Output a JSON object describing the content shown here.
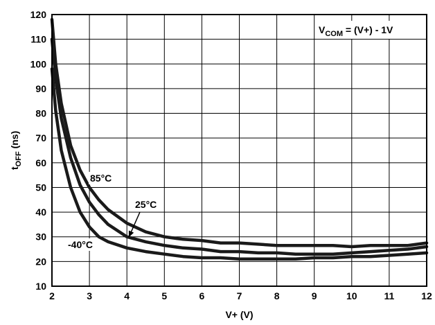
{
  "chart_data": {
    "type": "line",
    "xlabel": "V+ (V)",
    "ylabel": {
      "main": "t",
      "sub": "OFF",
      "rest": " (ns)"
    },
    "xlim": [
      2,
      12
    ],
    "ylim": [
      10,
      120
    ],
    "xticks": [
      2,
      3,
      4,
      5,
      6,
      7,
      8,
      9,
      10,
      11,
      12
    ],
    "yticks": [
      10,
      20,
      30,
      40,
      50,
      60,
      70,
      80,
      90,
      100,
      110,
      120
    ],
    "grid": true,
    "line_color": "#1a1a1a",
    "condition_label": {
      "main": "V",
      "sub": "COM",
      "rest": " = (V+) - 1V"
    },
    "series": [
      {
        "name": "85°C",
        "x": [
          2.0,
          2.1,
          2.25,
          2.5,
          2.75,
          3.0,
          3.25,
          3.5,
          4.0,
          4.5,
          5.0,
          5.5,
          6.0,
          6.5,
          7.0,
          7.5,
          8.0,
          8.5,
          9.0,
          9.5,
          10.0,
          10.5,
          11.0,
          11.5,
          12.0
        ],
        "y": [
          118,
          100,
          84,
          67,
          57,
          50,
          45,
          41,
          35.5,
          32,
          30,
          29,
          28.5,
          27.5,
          27.5,
          27,
          26.5,
          26.5,
          26.5,
          26.5,
          26,
          26.5,
          26.5,
          26.5,
          27.5
        ]
      },
      {
        "name": "25°C",
        "x": [
          2.0,
          2.1,
          2.25,
          2.5,
          2.75,
          3.0,
          3.25,
          3.5,
          4.0,
          4.5,
          5.0,
          5.5,
          6.0,
          6.5,
          7.0,
          7.5,
          8.0,
          8.5,
          9.0,
          9.5,
          10.0,
          10.5,
          11.0,
          11.5,
          12.0
        ],
        "y": [
          110,
          94,
          78,
          62,
          51,
          44,
          39,
          35,
          30,
          28,
          26.5,
          25.5,
          25,
          24,
          24,
          23.5,
          23.5,
          23,
          23,
          23,
          23.5,
          24,
          24.5,
          25,
          26
        ]
      },
      {
        "name": "-40°C",
        "x": [
          2.0,
          2.1,
          2.25,
          2.5,
          2.75,
          3.0,
          3.25,
          3.5,
          4.0,
          4.5,
          5.0,
          5.5,
          6.0,
          6.5,
          7.0,
          7.5,
          8.0,
          8.5,
          9.0,
          9.5,
          10.0,
          10.5,
          11.0,
          11.5,
          12.0
        ],
        "y": [
          98,
          81,
          65,
          50,
          40,
          34,
          30,
          28,
          25.5,
          24,
          23,
          22,
          21.5,
          21.5,
          21,
          21,
          21,
          21,
          21.5,
          21.5,
          22,
          22,
          22.5,
          23,
          23.5
        ]
      }
    ],
    "annotations": [
      {
        "text": "85°C",
        "series": "85°C"
      },
      {
        "text": "25°C",
        "series": "25°C"
      },
      {
        "text": "-40°C",
        "series": "-40°C"
      }
    ]
  }
}
